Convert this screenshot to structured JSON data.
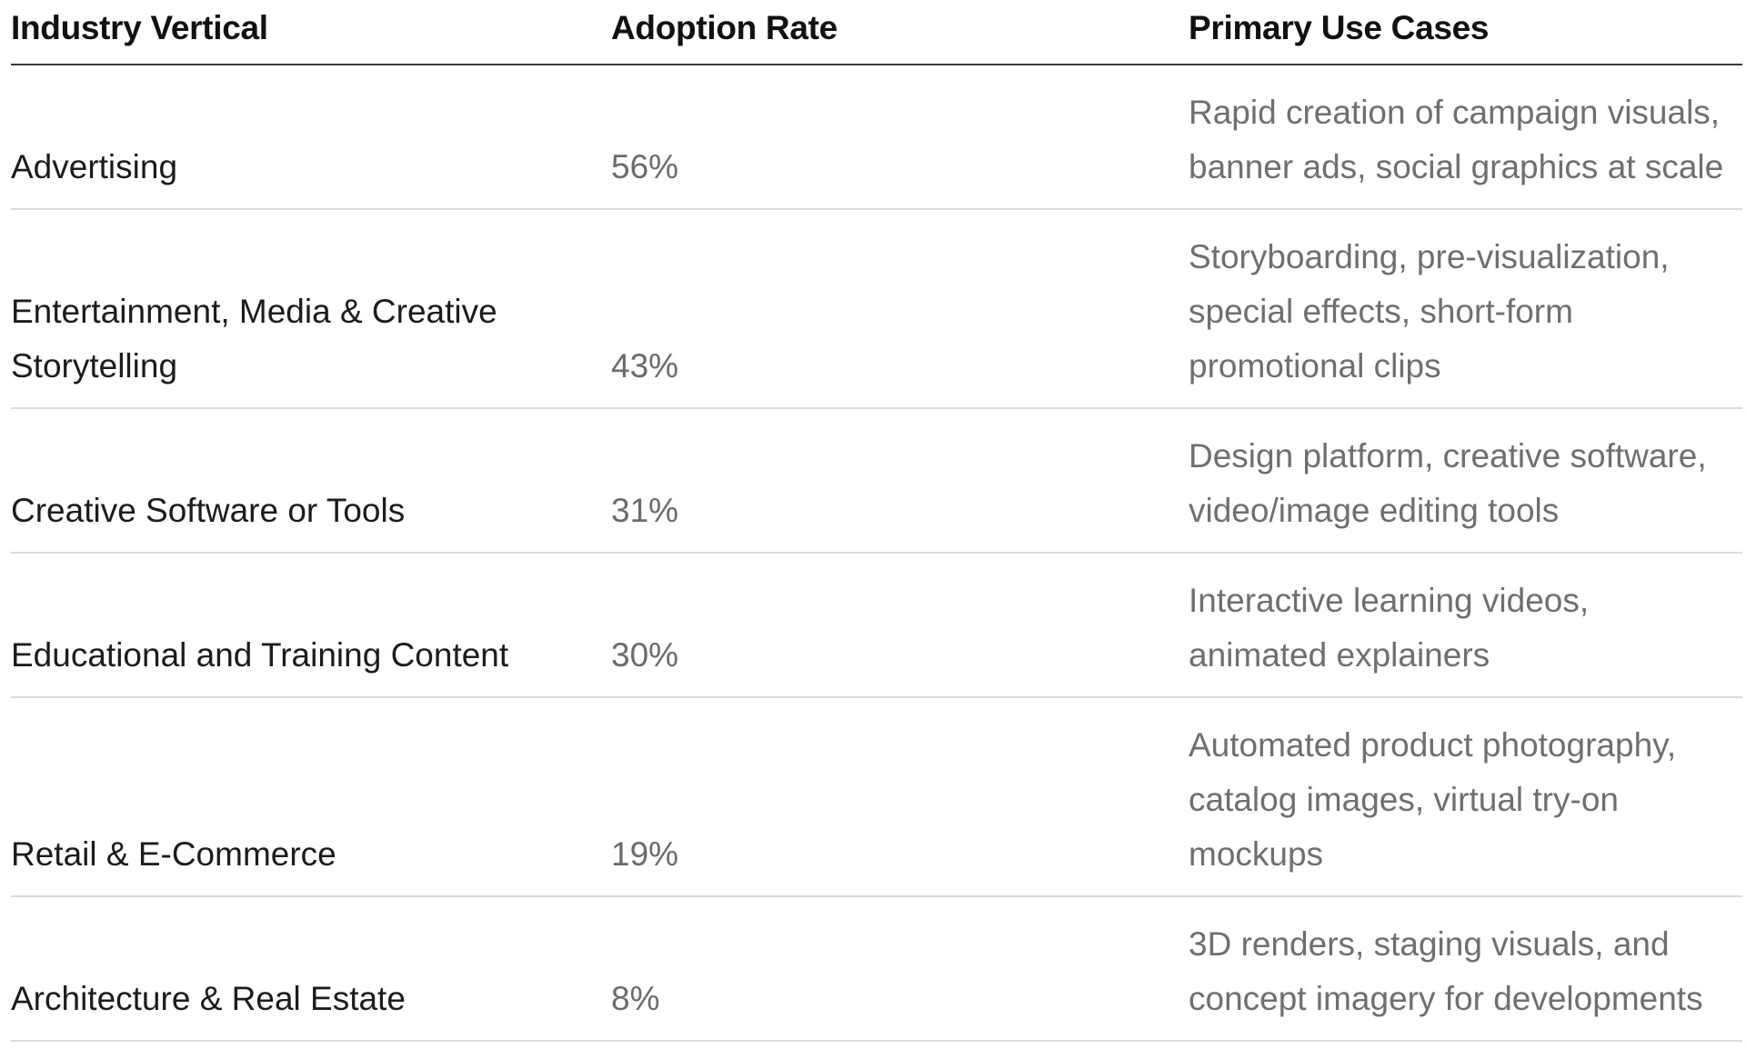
{
  "headers": {
    "industry": "Industry Vertical",
    "adoption": "Adoption Rate",
    "use_cases": "Primary Use Cases"
  },
  "rows": [
    {
      "industry": "Advertising",
      "adoption": "56%",
      "use_cases": "Rapid creation of campaign visuals,\nbanner ads, social graphics at scale"
    },
    {
      "industry": "Entertainment, Media & Creative\nStorytelling",
      "adoption": "43%",
      "use_cases": "Storyboarding, pre-visualization,\nspecial effects, short-form\npromotional clips"
    },
    {
      "industry": "Creative Software or Tools",
      "adoption": "31%",
      "use_cases": "Design platform, creative software,\nvideo/image editing tools"
    },
    {
      "industry": "Educational and Training Content",
      "adoption": "30%",
      "use_cases": "Interactive learning videos,\nanimated explainers"
    },
    {
      "industry": "Retail & E-Commerce",
      "adoption": "19%",
      "use_cases": "Automated product photography,\ncatalog images, virtual try-on\nmockups"
    },
    {
      "industry": "Architecture & Real Estate",
      "adoption": "8%",
      "use_cases": "3D renders, staging visuals, and\nconcept imagery for developments"
    }
  ]
}
